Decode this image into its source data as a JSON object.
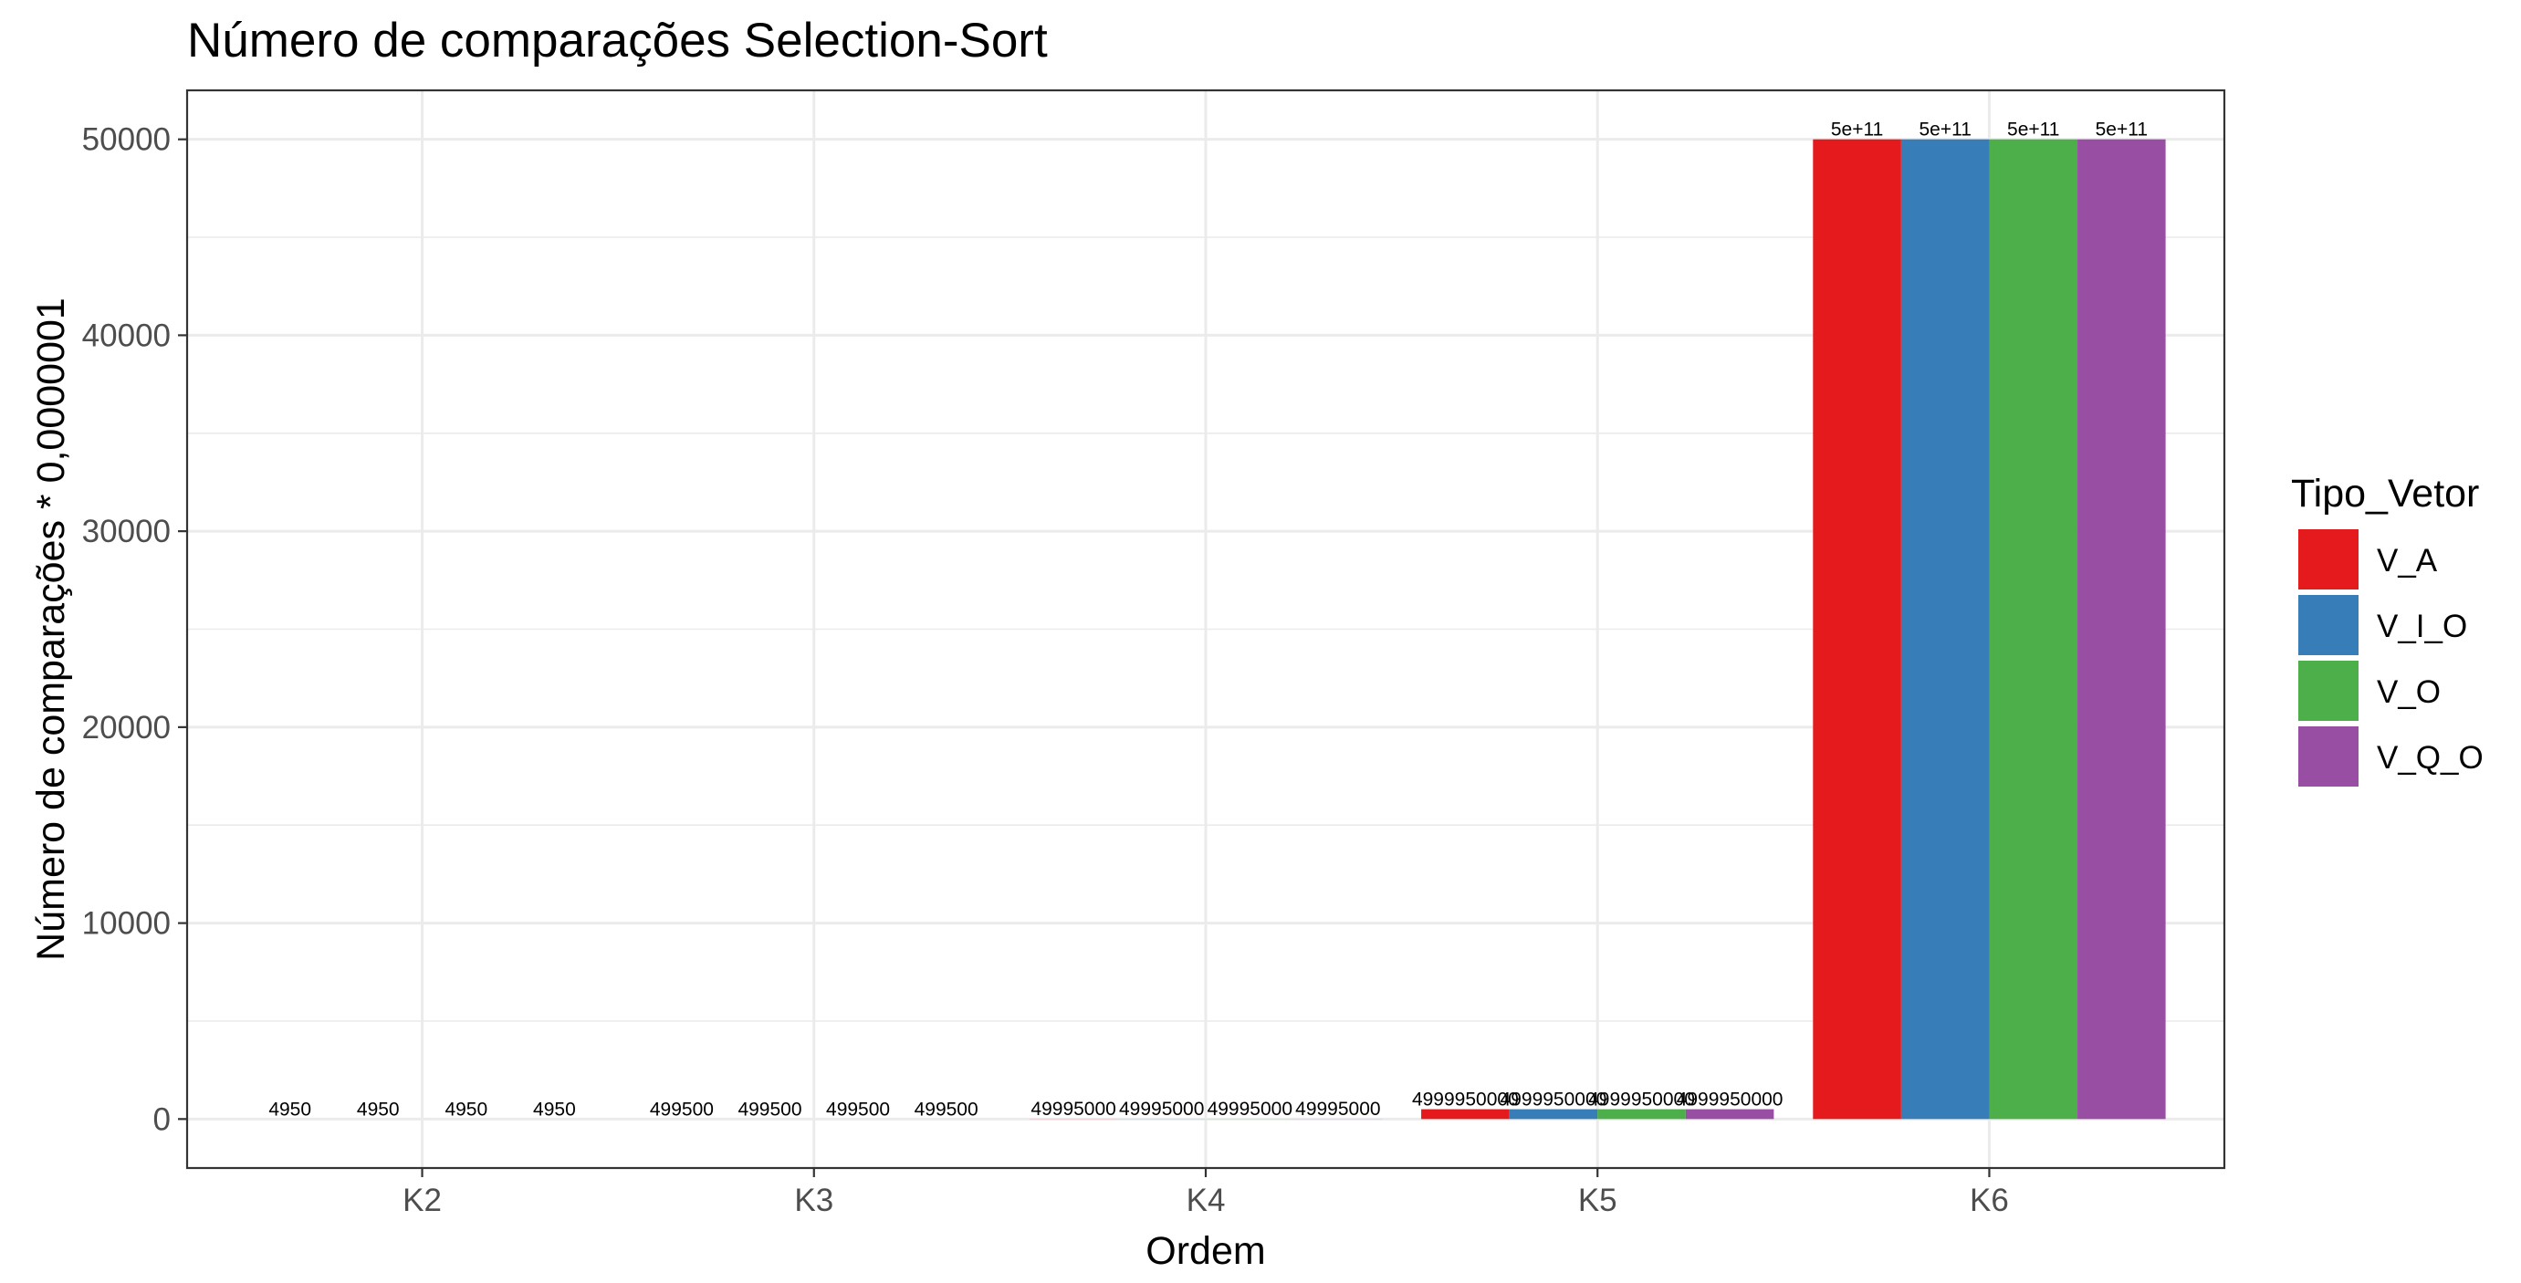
{
  "chart_data": {
    "type": "bar",
    "title": "Número de comparações Selection-Sort",
    "xlabel": "Ordem",
    "ylabel": "Número de comparações * 0,0000001",
    "categories": [
      "K2",
      "K3",
      "K4",
      "K5",
      "K6"
    ],
    "ylim": [
      -2500,
      52500
    ],
    "yticks": [
      0,
      10000,
      20000,
      30000,
      40000,
      50000
    ],
    "grid": true,
    "legend": {
      "title": "Tipo_Vetor",
      "position": "right"
    },
    "series": [
      {
        "name": "V_A",
        "color": "#E41A1C",
        "values": [
          0.000495,
          0.04995,
          4.9995,
          499.995,
          50000
        ],
        "labels": [
          "4950",
          "499500",
          "49995000",
          "4999950000",
          "5e+11"
        ]
      },
      {
        "name": "V_I_O",
        "color": "#377EB8",
        "values": [
          0.000495,
          0.04995,
          4.9995,
          499.995,
          50000
        ],
        "labels": [
          "4950",
          "499500",
          "49995000",
          "4999950000",
          "5e+11"
        ]
      },
      {
        "name": "V_O",
        "color": "#4DAF4A",
        "values": [
          0.000495,
          0.04995,
          4.9995,
          499.995,
          50000
        ],
        "labels": [
          "4950",
          "499500",
          "49995000",
          "4999950000",
          "5e+11"
        ]
      },
      {
        "name": "V_Q_O",
        "color": "#984EA3",
        "values": [
          0.000495,
          0.04995,
          4.9995,
          499.995,
          50000
        ],
        "labels": [
          "4950",
          "499500",
          "49995000",
          "4999950000",
          "5e+11"
        ]
      }
    ]
  }
}
